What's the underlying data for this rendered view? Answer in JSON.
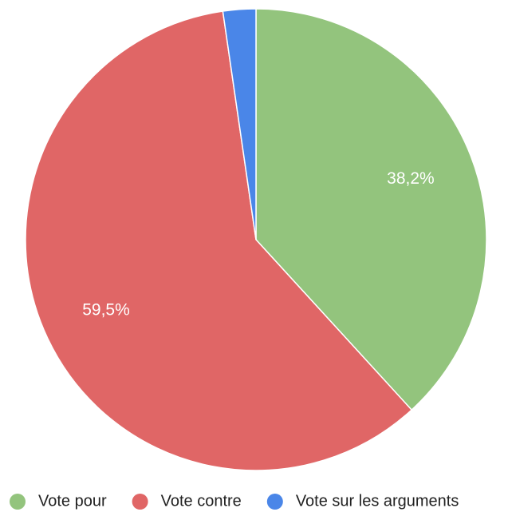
{
  "chart_data": {
    "type": "pie",
    "categories": [
      "Vote pour",
      "Vote contre",
      "Vote sur les arguments"
    ],
    "values": [
      38.2,
      59.5,
      2.3
    ],
    "value_labels": [
      "38,2%",
      "59,5%",
      null
    ],
    "colors": [
      "#93c47d",
      "#e06666",
      "#4a86e8"
    ],
    "legend": "bottom"
  }
}
